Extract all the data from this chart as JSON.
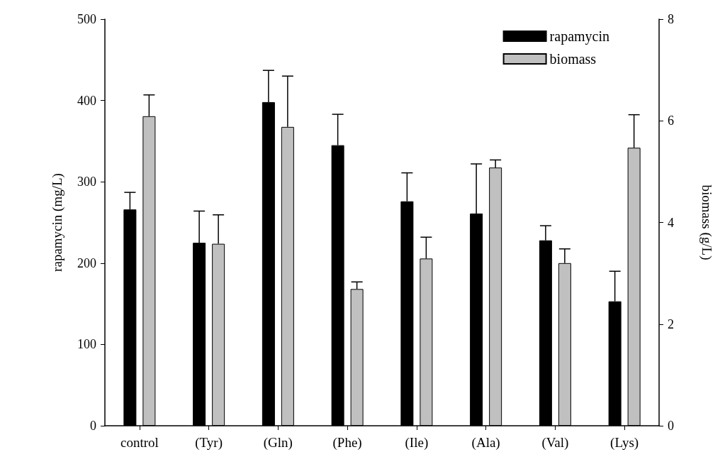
{
  "chart_data": {
    "type": "bar",
    "categories": [
      "control",
      "(Tyr)",
      "(Gln)",
      "(Phe)",
      "(Ile)",
      "(Ala)",
      "(Val)",
      "(Lys)"
    ],
    "ylabel": "rapamycin (mg/L)",
    "y2label": "biomass (g/L)",
    "ylim": [
      0,
      500
    ],
    "yticks": [
      0,
      100,
      200,
      300,
      400,
      500
    ],
    "y2lim": [
      0,
      8
    ],
    "y2ticks": [
      0,
      2,
      4,
      6,
      8
    ],
    "legend": "top right",
    "grid": false,
    "series": [
      {
        "name": "rapamycin",
        "color": "#000000",
        "values": [
          266,
          225,
          398,
          345,
          276,
          261,
          228,
          153
        ],
        "errors": [
          [
            266,
            287
          ],
          [
            225,
            264
          ],
          [
            398,
            437
          ],
          [
            345,
            383
          ],
          [
            276,
            311
          ],
          [
            261,
            322
          ],
          [
            228,
            246
          ],
          [
            153,
            190
          ]
        ]
      },
      {
        "name": "biomass",
        "color": "#c0c0c0",
        "axis": "y2",
        "values": [
          6.09,
          3.58,
          5.88,
          2.69,
          3.29,
          5.08,
          3.2,
          5.47
        ],
        "errors": [
          [
            6.09,
            6.51
          ],
          [
            3.58,
            4.15
          ],
          [
            5.88,
            6.88
          ],
          [
            2.69,
            2.83
          ],
          [
            3.29,
            3.71
          ],
          [
            5.08,
            5.23
          ],
          [
            3.2,
            3.48
          ],
          [
            5.47,
            6.12
          ]
        ]
      }
    ]
  }
}
